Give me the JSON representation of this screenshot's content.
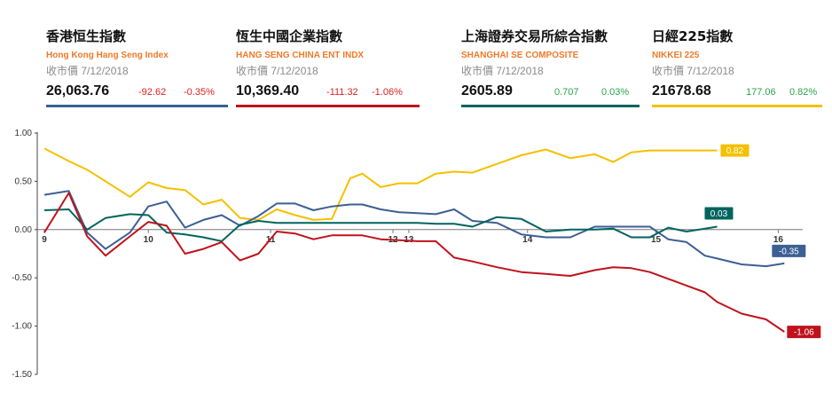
{
  "panels": [
    {
      "title": "香港恒生指數",
      "subtitle": "Hong Kong Hang Seng Index",
      "date": "收市價 7/12/2018",
      "value": "26,063.76",
      "change": "-92.62",
      "pct": "-0.35%",
      "color": "#3c5f94",
      "change_color": "#e0201e"
    },
    {
      "title": "恆生中國企業指數",
      "subtitle": "HANG SENG CHINA ENT INDX",
      "date": "收市價 7/12/2018",
      "value": "10,369.40",
      "change": "-111.32",
      "pct": "-1.06%",
      "color": "#c0121c",
      "change_color": "#e0201e"
    },
    {
      "title": "上海證券交易所綜合指數",
      "subtitle": "SHANGHAI SE COMPOSITE",
      "date": "收市價 7/12/2018",
      "value": "2605.89",
      "change": "0.707",
      "pct": "0.03%",
      "color": "#00655e",
      "change_color": "#2aa44a"
    },
    {
      "title": "日經225指數",
      "subtitle": "NIKKEI 225",
      "date": "收市價 7/12/2018",
      "value": "21678.68",
      "change": "177.06",
      "pct": "0.82%",
      "color": "#f5c000",
      "change_color": "#2aa44a"
    }
  ],
  "chart_data": {
    "type": "line",
    "title": "",
    "xlabel": "",
    "ylabel": "",
    "ylim": [
      -1.5,
      1.0
    ],
    "xlim": [
      0,
      62
    ],
    "y_ticks": [
      "1.00",
      "0.50",
      "0.00",
      "-0.50",
      "-1.00",
      "-1.50"
    ],
    "y_tick_values": [
      1.0,
      0.5,
      0.0,
      -0.5,
      -1.0,
      -1.5
    ],
    "x_tick_labels": [
      {
        "x": 0,
        "label": "9"
      },
      {
        "x": 8.5,
        "label": "10"
      },
      {
        "x": 18.5,
        "label": "11"
      },
      {
        "x": 28.5,
        "label": "12"
      },
      {
        "x": 29.8,
        "label": "13"
      },
      {
        "x": 39.5,
        "label": "14"
      },
      {
        "x": 50,
        "label": "15"
      },
      {
        "x": 60,
        "label": "16"
      }
    ],
    "grid": false,
    "series": [
      {
        "key": "nikkei",
        "color": "#f5c000",
        "end_label": "0.82",
        "x": [
          0,
          2,
          3.5,
          5,
          7,
          8.5,
          10,
          11.5,
          13,
          14.5,
          16,
          17.5,
          19,
          20.5,
          22,
          23.5,
          25,
          26,
          27.5,
          29,
          30.5,
          32,
          33.5,
          35,
          37,
          39,
          41,
          43,
          45,
          46.5,
          48,
          49.5,
          51,
          52.5,
          54,
          55
        ],
        "y": [
          0.84,
          0.71,
          0.62,
          0.5,
          0.34,
          0.49,
          0.43,
          0.41,
          0.26,
          0.31,
          0.12,
          0.1,
          0.21,
          0.15,
          0.1,
          0.11,
          0.53,
          0.58,
          0.44,
          0.48,
          0.48,
          0.58,
          0.6,
          0.59,
          0.68,
          0.77,
          0.83,
          0.74,
          0.78,
          0.7,
          0.8,
          0.82,
          0.82,
          0.82,
          0.82,
          0.82
        ]
      },
      {
        "key": "hsi",
        "color": "#3c5f94",
        "end_label": "-0.35",
        "x": [
          0,
          2,
          3.5,
          5,
          7,
          8.5,
          10,
          11.5,
          13,
          14.5,
          16,
          17.5,
          19,
          20.5,
          22,
          23.5,
          25,
          26,
          27.5,
          29,
          30.5,
          32,
          33.5,
          35,
          37,
          39,
          41,
          43,
          45,
          46.5,
          48,
          49.5,
          51,
          52.5,
          54,
          55,
          57,
          59,
          60.5
        ],
        "y": [
          0.36,
          0.4,
          -0.03,
          -0.2,
          -0.03,
          0.24,
          0.29,
          0.02,
          0.1,
          0.15,
          0.04,
          0.14,
          0.27,
          0.27,
          0.2,
          0.24,
          0.26,
          0.26,
          0.21,
          0.18,
          0.17,
          0.16,
          0.21,
          0.09,
          0.07,
          -0.05,
          -0.08,
          -0.08,
          0.03,
          0.03,
          0.03,
          0.03,
          -0.1,
          -0.13,
          -0.27,
          -0.3,
          -0.36,
          -0.38,
          -0.35
        ]
      },
      {
        "key": "shanghai",
        "color": "#00655e",
        "end_label": "0.03",
        "x": [
          0,
          2,
          3.5,
          5,
          7,
          8.5,
          10,
          11.5,
          13,
          14.5,
          16,
          17.5,
          19,
          20.5,
          22,
          23.5,
          25,
          26,
          27.5,
          29,
          30.5,
          32,
          33.5,
          35,
          37,
          39,
          41,
          43,
          45,
          46.5,
          48,
          49.5,
          51,
          52.5,
          54,
          55
        ],
        "y": [
          0.2,
          0.21,
          0.0,
          0.12,
          0.16,
          0.15,
          -0.03,
          -0.05,
          -0.08,
          -0.12,
          0.05,
          0.09,
          0.07,
          0.07,
          0.07,
          0.07,
          0.07,
          0.07,
          0.07,
          0.07,
          0.07,
          0.06,
          0.06,
          0.03,
          0.13,
          0.11,
          -0.02,
          0.0,
          0.0,
          0.01,
          -0.08,
          -0.08,
          0.02,
          -0.02,
          0.01,
          0.03
        ]
      },
      {
        "key": "hscei",
        "color": "#c0121c",
        "end_label": "-1.06",
        "x": [
          0,
          2,
          3.5,
          5,
          7,
          8.5,
          10,
          11.5,
          13,
          14.5,
          16,
          17.5,
          19,
          20.5,
          22,
          23.5,
          25,
          26,
          27.5,
          29,
          30.5,
          32,
          33.5,
          35,
          37,
          39,
          41,
          43,
          45,
          46.5,
          48,
          49.5,
          51,
          52.5,
          54,
          55,
          57,
          59,
          60.5
        ],
        "y": [
          -0.03,
          0.38,
          -0.07,
          -0.27,
          -0.07,
          0.08,
          0.04,
          -0.25,
          -0.2,
          -0.13,
          -0.32,
          -0.25,
          -0.02,
          -0.04,
          -0.1,
          -0.06,
          -0.06,
          -0.06,
          -0.1,
          -0.11,
          -0.12,
          -0.12,
          -0.29,
          -0.33,
          -0.39,
          -0.44,
          -0.46,
          -0.48,
          -0.42,
          -0.39,
          -0.4,
          -0.44,
          -0.51,
          -0.58,
          -0.65,
          -0.75,
          -0.87,
          -0.93,
          -1.06
        ]
      }
    ]
  }
}
